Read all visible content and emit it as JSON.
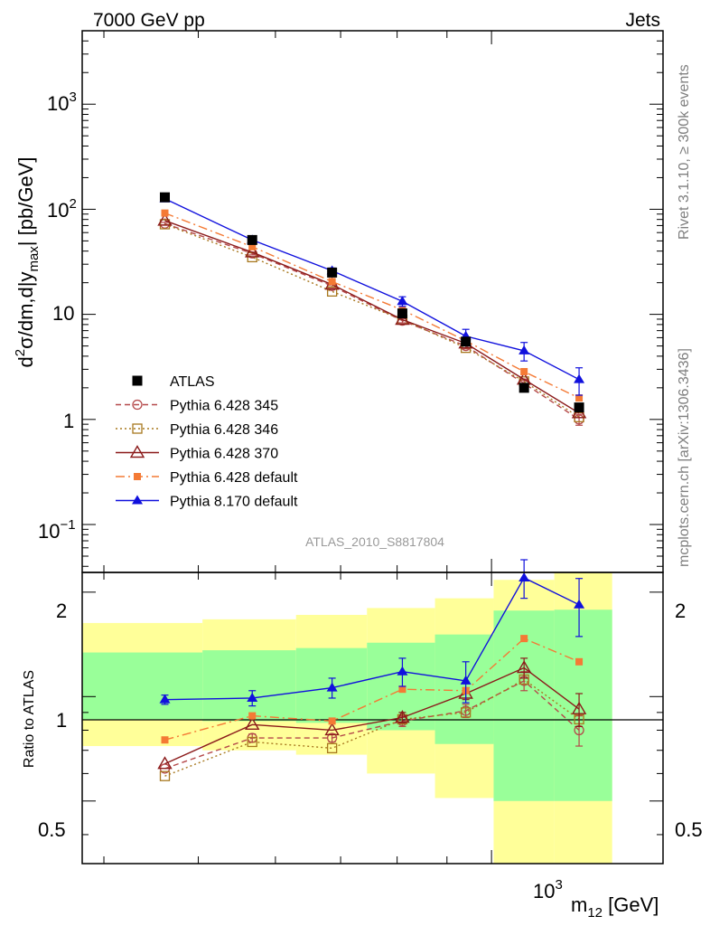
{
  "header": {
    "left": "7000 GeV pp",
    "right": "Jets"
  },
  "side_text": {
    "rivet": "Rivet 3.1.10, ≥ 300k events",
    "site": "mcplots.cern.ch [arXiv:1306.3436]"
  },
  "watermark": "ATLAS_2010_S8817804",
  "labels": {
    "ylabel_main": "d²σ/dm,d|y_max| [pb/GeV]",
    "ylabel_ratio": "Ratio to ATLAS",
    "xlabel": "m₁₂ [GeV]",
    "xtick": "10³"
  },
  "colors": {
    "atlas": "#000000",
    "p345": "#b5494a",
    "p346": "#a8781f",
    "p370": "#8b1a1a",
    "pdef": "#f47a35",
    "p8": "#1010dd",
    "band_yellow": "#ffff99",
    "band_green": "#99ff99"
  },
  "chart_data": [
    {
      "type": "line",
      "panel": "main",
      "xscale": "log",
      "yscale": "log",
      "ylabel": "d²σ/dm,d|y_max| [pb/GeV]",
      "xlim": [
        380,
        1500
      ],
      "ylim": [
        0.035,
        5000
      ],
      "yticks": [
        "10⁻¹",
        "1",
        "10",
        "10²",
        "10³"
      ],
      "legend_position": "lower-left",
      "x": [
        462,
        568,
        686,
        810,
        941,
        1080,
        1230
      ],
      "series": [
        {
          "name": "ATLAS",
          "marker": "filled-square",
          "values": [
            130,
            51,
            25,
            10.2,
            5.5,
            2.0,
            1.3
          ]
        },
        {
          "name": "Pythia 6.428 345",
          "marker": "open-circle",
          "style": "dashed",
          "values": [
            73,
            38,
            18.6,
            8.7,
            5.0,
            2.2,
            1.0
          ],
          "errors": [
            2,
            1.2,
            0.7,
            0.4,
            0.3,
            0.15,
            0.12
          ]
        },
        {
          "name": "Pythia 6.428 346",
          "marker": "open-square",
          "style": "dotted",
          "values": [
            72,
            35,
            16.5,
            8.9,
            4.8,
            2.3,
            1.05
          ]
        },
        {
          "name": "Pythia 6.428 370",
          "marker": "open-triangle",
          "style": "solid",
          "values": [
            78,
            39,
            19.2,
            8.9,
            5.3,
            2.4,
            1.15
          ]
        },
        {
          "name": "Pythia 6.428 default",
          "marker": "filled-square-small",
          "style": "dashdot",
          "values": [
            92,
            44,
            20.5,
            11.0,
            5.6,
            2.85,
            1.6
          ]
        },
        {
          "name": "Pythia 8.170 default",
          "marker": "filled-triangle",
          "style": "solid",
          "values": [
            126,
            51,
            26,
            13.3,
            6.2,
            4.5,
            2.4
          ],
          "errors": [
            4,
            2.5,
            1.6,
            1.4,
            1.0,
            0.9,
            0.7
          ]
        }
      ]
    },
    {
      "type": "line",
      "panel": "ratio",
      "ylabel": "Ratio to ATLAS",
      "xlabel": "m₁₂ [GeV]",
      "ylim": [
        0.33,
        2.28
      ],
      "yticks": [
        "0.5",
        "1",
        "2"
      ],
      "x": [
        462,
        568,
        686,
        810,
        941,
        1080,
        1230
      ],
      "bands": {
        "edges": [
          380,
          505,
          630,
          745,
          875,
          1005,
          1160,
          1330
        ],
        "yellow_low": [
          0.72,
          0.7,
          0.68,
          0.6,
          0.51,
          0.32,
          0.32
        ],
        "yellow_high": [
          1.63,
          1.67,
          1.72,
          1.8,
          1.92,
          2.17,
          2.35
        ],
        "green_low": [
          0.86,
          0.85,
          0.84,
          0.8,
          0.73,
          0.5,
          0.5
        ],
        "green_high": [
          1.34,
          1.36,
          1.38,
          1.43,
          1.51,
          1.77,
          1.78
        ]
      },
      "series": [
        {
          "name": "Pythia 6.428 345",
          "values": [
            0.62,
            0.76,
            0.76,
            0.85,
            0.91,
            1.11,
            0.8
          ],
          "errors": [
            0,
            0.02,
            0.02,
            0.03,
            0.04,
            0.07,
            0.08
          ]
        },
        {
          "name": "Pythia 6.428 346",
          "values": [
            0.59,
            0.74,
            0.71,
            0.86,
            0.9,
            1.12,
            0.86
          ]
        },
        {
          "name": "Pythia 6.428 370",
          "values": [
            0.64,
            0.83,
            0.8,
            0.87,
            1.02,
            1.21,
            0.92
          ],
          "errors": [
            0,
            0,
            0,
            0.03,
            0.04,
            0.08,
            0.1
          ]
        },
        {
          "name": "Pythia 6.428 default",
          "values": [
            0.75,
            0.88,
            0.85,
            1.05,
            1.04,
            1.47,
            1.26
          ]
        },
        {
          "name": "Pythia 8.170 default",
          "values": [
            0.98,
            0.99,
            1.06,
            1.18,
            1.11,
            2.2,
            1.84
          ],
          "errors": [
            0.03,
            0.05,
            0.07,
            0.11,
            0.15,
            0.28,
            0.35
          ]
        }
      ]
    }
  ]
}
